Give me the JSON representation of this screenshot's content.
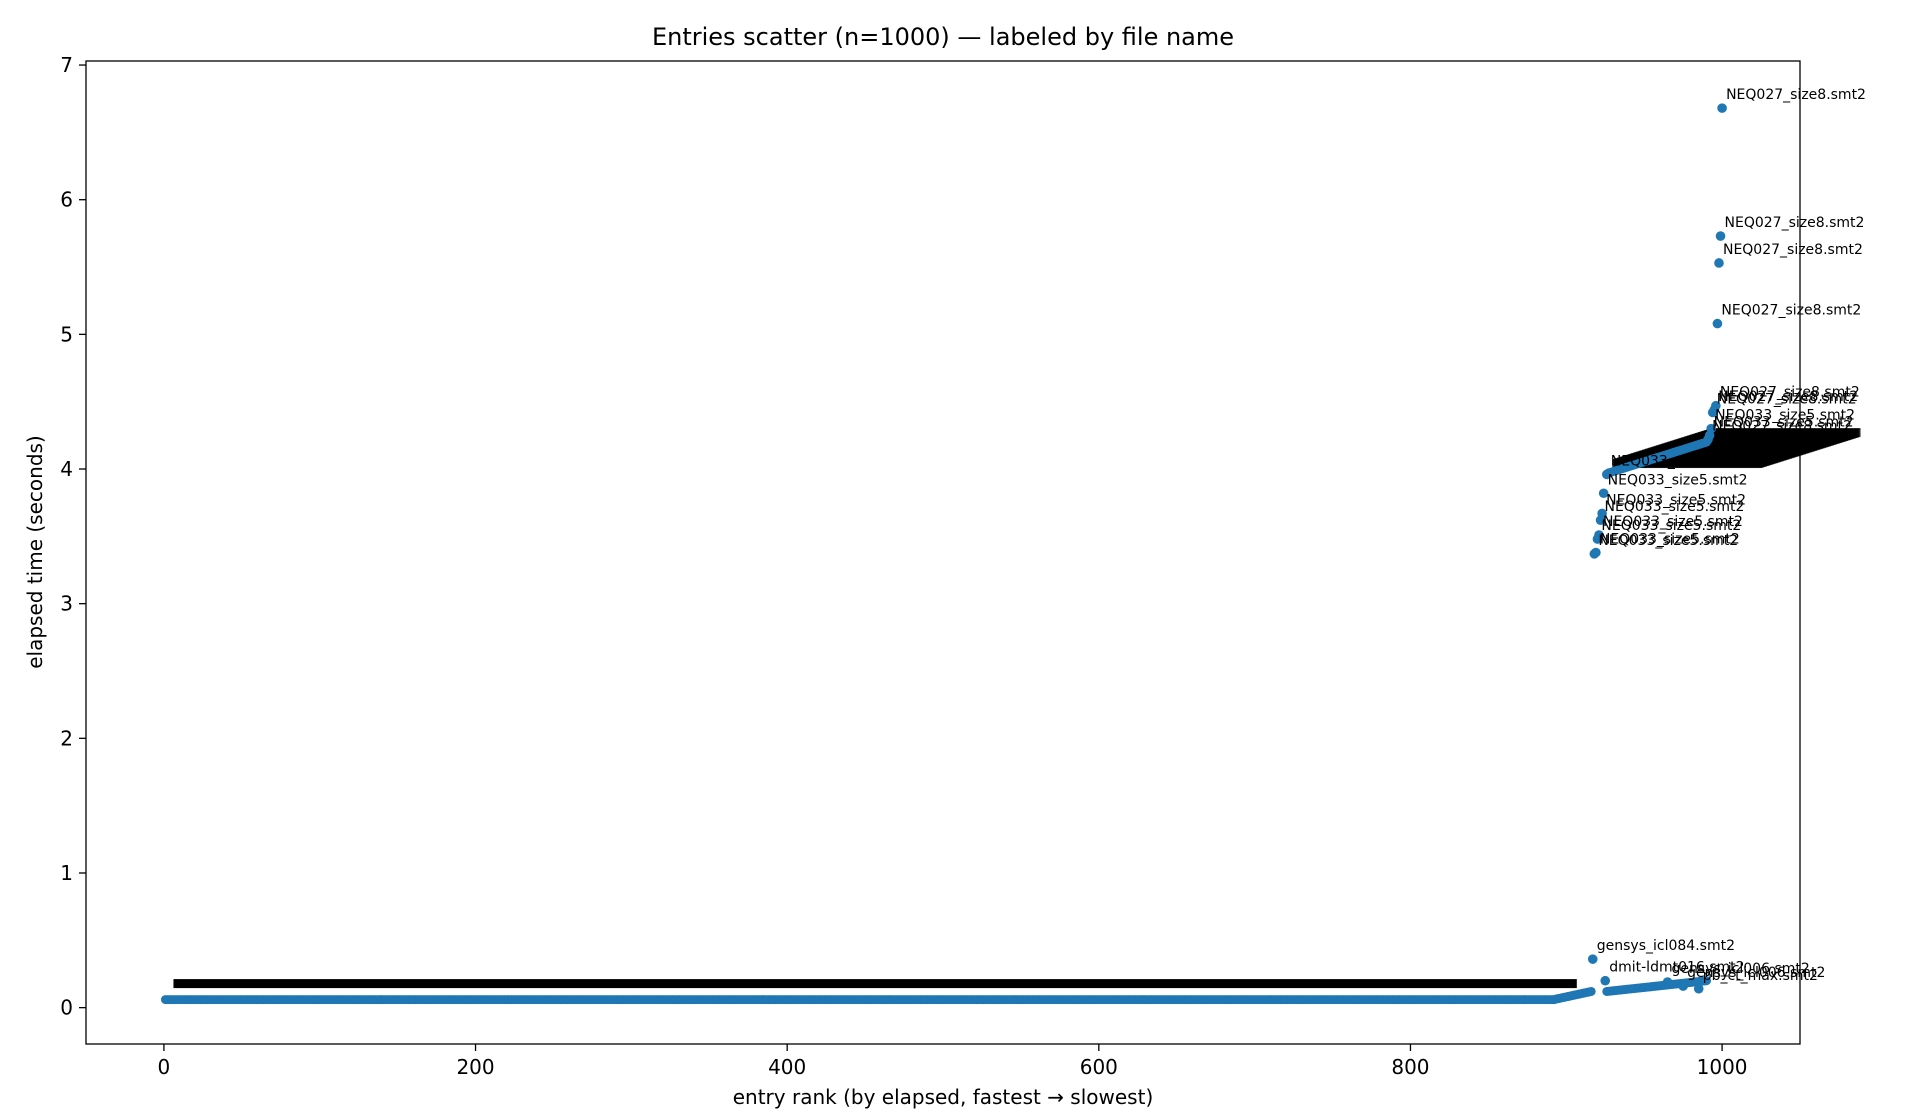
{
  "chart_data": {
    "type": "scatter",
    "title": "Entries scatter (n=1000) — labeled by file name",
    "xlabel": "entry rank (by elapsed, fastest → slowest)",
    "ylabel": "elapsed time (seconds)",
    "xlim": [
      -50,
      1050
    ],
    "ylim": [
      -0.27,
      7.03
    ],
    "xticks": [
      0,
      200,
      400,
      600,
      800,
      1000
    ],
    "yticks": [
      0,
      1,
      2,
      3,
      4,
      5,
      6,
      7
    ],
    "grid": false,
    "legend": "none",
    "marker_color": "#1f77b4",
    "points": [
      {
        "x": 1000,
        "y": 6.68,
        "label": "NEQ027_size8.smt2"
      },
      {
        "x": 999,
        "y": 5.73,
        "label": "NEQ027_size8.smt2"
      },
      {
        "x": 998,
        "y": 5.53,
        "label": "NEQ027_size8.smt2"
      },
      {
        "x": 997,
        "y": 5.08,
        "label": "NEQ027_size8.smt2"
      },
      {
        "x": 996,
        "y": 4.47,
        "label": "NEQ027_size8.smt2"
      },
      {
        "x": 995,
        "y": 4.44,
        "label": "NEQ027_size8.smt2"
      },
      {
        "x": 994,
        "y": 4.42,
        "label": "NEQ027_size8.smt2"
      },
      {
        "x": 993,
        "y": 4.3,
        "label": "NEQ033_size5.smt2"
      },
      {
        "x": 992,
        "y": 4.25,
        "label": "NEQ033_size5.smt2"
      },
      {
        "x": 991,
        "y": 4.22,
        "label": "NEQ027_size8.smt2"
      },
      {
        "x": 926,
        "y": 3.96,
        "label": "NEQ033_size5.smt2"
      },
      {
        "x": 924,
        "y": 3.82,
        "label": "NEQ033_size5.smt2"
      },
      {
        "x": 923,
        "y": 3.67,
        "label": "NEQ033_size5.smt2"
      },
      {
        "x": 922,
        "y": 3.62,
        "label": "NEQ033_size5.smt2"
      },
      {
        "x": 921,
        "y": 3.51,
        "label": "NEQ033_size5.smt2"
      },
      {
        "x": 920,
        "y": 3.48,
        "label": "NEQ033_size5.smt2"
      },
      {
        "x": 919,
        "y": 3.38,
        "label": "NEQ033_size5.smt2"
      },
      {
        "x": 918,
        "y": 3.37,
        "label": "NEQ033_size5.smt2"
      },
      {
        "x": 917,
        "y": 0.36,
        "label": "gensys_icl084.smt2"
      },
      {
        "x": 925,
        "y": 0.2,
        "label": "dmit-ldmt016.smt2"
      },
      {
        "x": 965,
        "y": 0.19,
        "label": "gensys_icl006.smt2"
      },
      {
        "x": 975,
        "y": 0.16,
        "label": "gensys_icl006.smt2"
      },
      {
        "x": 985,
        "y": 0.14,
        "label": "pb_ct_max.smt2"
      }
    ],
    "dense_band": {
      "x_from": 1,
      "x_to": 892,
      "y": 0.06,
      "label_y": 0.16
    },
    "ramp_low": {
      "x_from": 892,
      "x_to": 916,
      "y_from": 0.06,
      "y_to": 0.12
    },
    "ramp_low2": {
      "x_from": 926,
      "x_to": 990,
      "y_from": 0.12,
      "y_to": 0.2
    },
    "cluster_4s": {
      "x_from": 927,
      "x_to": 990,
      "y_from": 3.97,
      "y_to": 4.2
    }
  }
}
